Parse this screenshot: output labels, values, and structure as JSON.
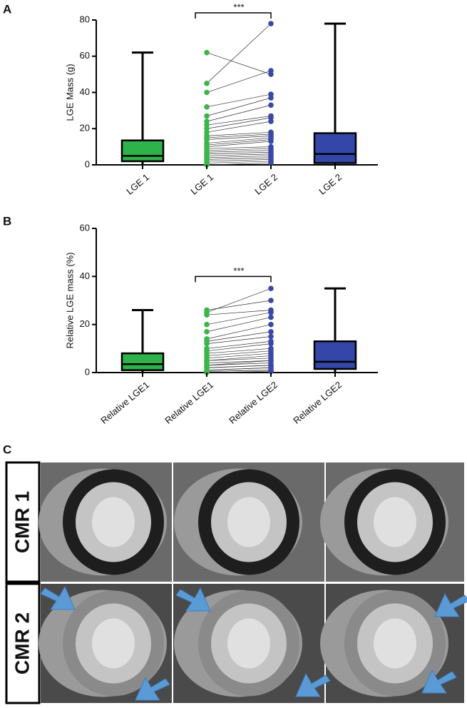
{
  "panel_labels": [
    "A",
    "B",
    "C"
  ],
  "chart_data": [
    {
      "type": "box",
      "y_label": "LGE Mass (g)",
      "ylim": [
        0,
        80
      ],
      "yticks": [
        0,
        20,
        40,
        60,
        80
      ],
      "boxes": [
        {
          "label": "LGE 1",
          "color": "#2eb24a",
          "min": 0,
          "q1": 2,
          "median": 5,
          "q3": 13.5,
          "max": 62
        },
        {
          "label": "LGE 2",
          "color": "#3447a8",
          "min": 0,
          "q1": 1,
          "median": 6,
          "q3": 17.5,
          "max": 78
        }
      ],
      "paired": {
        "labels": [
          "LGE 1",
          "LGE 2"
        ],
        "colors": [
          "#3cb54b",
          "#3a49a6"
        ],
        "before": [
          62,
          45,
          40,
          32,
          27,
          24,
          22,
          20,
          18,
          16,
          15,
          14,
          12,
          11,
          10,
          9,
          8,
          7,
          6,
          5,
          4,
          3,
          2,
          1,
          0
        ],
        "after": [
          50,
          78,
          52,
          39,
          37,
          33,
          27,
          26,
          24,
          18,
          17,
          16,
          15,
          14,
          13,
          10,
          9,
          8,
          7,
          6,
          5,
          4,
          3,
          2,
          1
        ]
      },
      "significance": "***"
    },
    {
      "type": "box",
      "y_label": "Relative LGE mass (%)",
      "ylim": [
        0,
        60
      ],
      "yticks": [
        0,
        20,
        40,
        60
      ],
      "boxes": [
        {
          "label": "Relative LGE1",
          "color": "#2eb24a",
          "min": 0,
          "q1": 1,
          "median": 3.5,
          "q3": 8,
          "max": 26
        },
        {
          "label": "Relative LGE2",
          "color": "#3447a8",
          "min": 0,
          "q1": 1.5,
          "median": 4.5,
          "q3": 13,
          "max": 35
        }
      ],
      "paired": {
        "labels": [
          "Relative LGE1",
          "Relative LGE2"
        ],
        "colors": [
          "#3cb54b",
          "#3a49a6"
        ],
        "before": [
          26,
          25,
          24,
          20,
          17,
          14,
          13,
          12,
          10,
          9,
          8,
          7,
          6,
          5,
          5,
          4,
          3,
          3,
          2,
          2,
          1,
          1,
          0.5,
          0.5,
          0
        ],
        "after": [
          30,
          35,
          26,
          25,
          23,
          20,
          17,
          15,
          13,
          12,
          10,
          9,
          8,
          7,
          6,
          5,
          5,
          4,
          3,
          3,
          2,
          2,
          1,
          1,
          0.5
        ]
      },
      "significance": "***"
    }
  ],
  "images": {
    "rows": [
      "CMR 1",
      "CMR 2"
    ]
  }
}
